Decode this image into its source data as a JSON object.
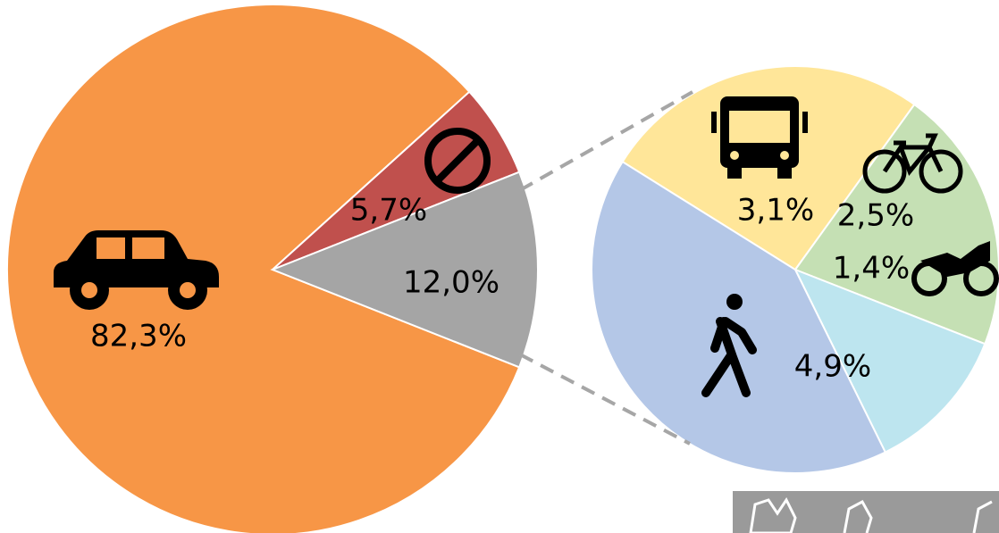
{
  "chart_data": [
    {
      "type": "pie",
      "categories": [
        null,
        null,
        null
      ],
      "values": [
        82.3,
        5.7,
        12.0
      ],
      "value_labels": [
        "82,3%",
        "5,7%",
        "12,0%"
      ],
      "colors": [
        "#f79646",
        "#c0504d",
        "#a5a5a5"
      ]
    },
    {
      "type": "pie",
      "categories": [
        null,
        null,
        null,
        null
      ],
      "values": [
        3.1,
        2.5,
        1.4,
        4.9
      ],
      "value_labels": [
        "3,1%",
        "2,5%",
        "1,4%",
        "4,9%"
      ],
      "colors": [
        "#ffe699",
        "#c5e0b4",
        "#bde5ef",
        "#b4c7e7"
      ]
    }
  ]
}
